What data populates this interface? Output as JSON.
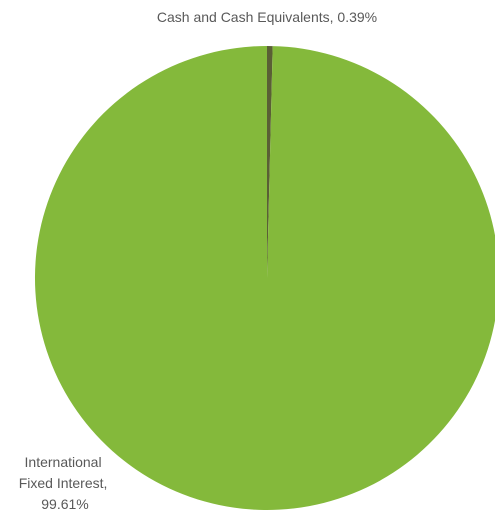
{
  "chart_data": {
    "type": "pie",
    "slices": [
      {
        "name": "Cash and Cash Equivalents",
        "value": 0.39,
        "label": "Cash and Cash Equivalents, 0.39%",
        "label_lines": [
          "Cash and Cash Equivalents, 0.39%"
        ],
        "color": "#5a5f35"
      },
      {
        "name": "International Fixed Interest",
        "value": 99.61,
        "label": "International Fixed Interest, 99.61%",
        "label_lines": [
          "International",
          "Fixed Interest,",
          "99.61%"
        ],
        "color": "#84b93b"
      }
    ],
    "start_angle": "12 o'clock",
    "direction": "clockwise",
    "legend": "none"
  }
}
